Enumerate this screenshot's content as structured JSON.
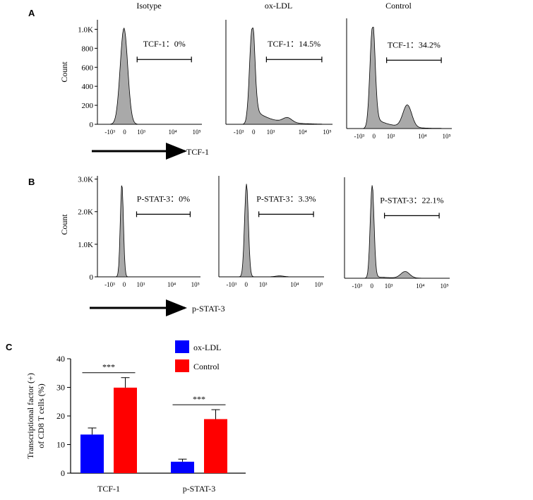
{
  "panel_labels": [
    "A",
    "B",
    "C"
  ],
  "chart_data": [
    {
      "type": "histogram",
      "panel": "A",
      "ylabel": "Count",
      "xlabel": "TCF-1",
      "yticks": [
        "0",
        "200",
        "400",
        "600",
        "800",
        "1.0K"
      ],
      "ylim": [
        0,
        1100
      ],
      "xticks": [
        "-10³",
        "0",
        "10³",
        "10⁴",
        "10⁵"
      ],
      "plots": [
        {
          "title": "Isotype",
          "gate_label": "TCF-1：0%",
          "gate_percent": 0
        },
        {
          "title": "ox-LDL",
          "gate_label": "TCF-1：14.5%",
          "gate_percent": 14.5
        },
        {
          "title": "Control",
          "gate_label": "TCF-1：34.2%",
          "gate_percent": 34.2
        }
      ]
    },
    {
      "type": "histogram",
      "panel": "B",
      "ylabel": "Count",
      "xlabel": "p-STAT-3",
      "yticks": [
        "0",
        "1.0K",
        "2.0K",
        "3.0K"
      ],
      "ylim": [
        0,
        3100
      ],
      "xticks": [
        "-10³",
        "0",
        "10³",
        "10⁴",
        "10⁵"
      ],
      "plots": [
        {
          "gate_label": "P-STAT-3：0%",
          "gate_percent": 0
        },
        {
          "gate_label": "P-STAT-3：3.3%",
          "gate_percent": 3.3
        },
        {
          "gate_label": "P-STAT-3：22.1%",
          "gate_percent": 22.1
        }
      ]
    },
    {
      "type": "bar",
      "panel": "C",
      "categories": [
        "TCF-1",
        "p-STAT-3"
      ],
      "series": [
        {
          "name": "ox-LDL",
          "color": "#0000ff",
          "values": [
            13.5,
            4.0
          ],
          "errors": [
            2.3,
            0.9
          ]
        },
        {
          "name": "Control",
          "color": "#ff0000",
          "values": [
            29.9,
            18.9
          ],
          "errors": [
            3.5,
            3.3
          ]
        }
      ],
      "ylabel_line1": "Transcriptional factor (+)",
      "ylabel_line2": "of CD8 T cells (%)",
      "yticks": [
        "0",
        "10",
        "20",
        "30",
        "40"
      ],
      "ylim": [
        0,
        40
      ],
      "significance": [
        "***",
        "***"
      ]
    }
  ]
}
